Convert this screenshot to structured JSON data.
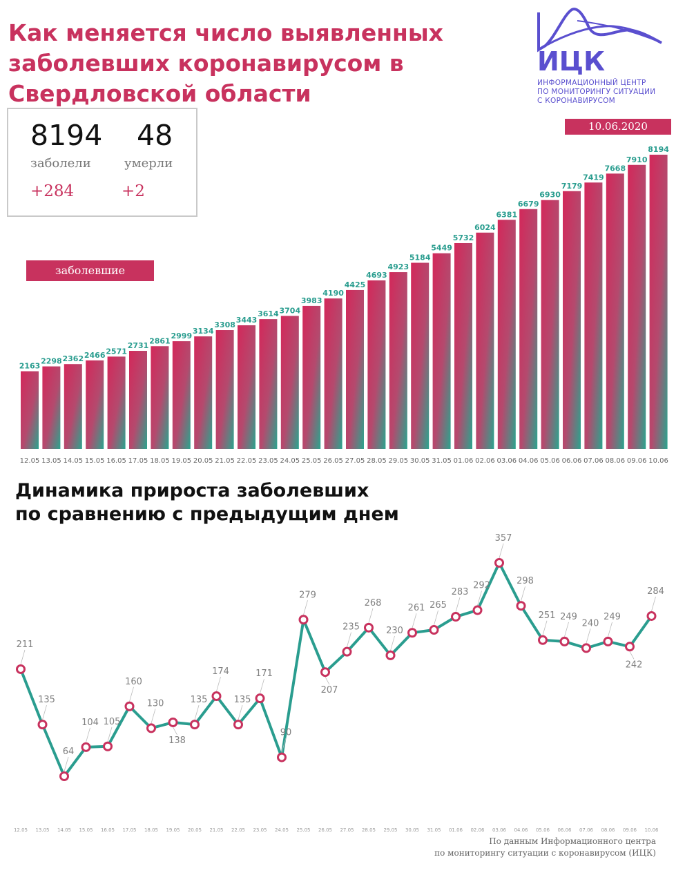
{
  "header": {
    "title_lines": [
      "Как меняется число выявленных",
      "заболевших коронавирусом в",
      "Свердловской области"
    ]
  },
  "stats": {
    "cases_total": "8194",
    "cases_label": "заболели",
    "cases_delta": "+284",
    "deaths_total": "48",
    "deaths_label": "умерли",
    "deaths_delta": "+2"
  },
  "logo": {
    "acronym": "ИЦК",
    "subtitle_lines": [
      "ИНФОРМАЦИОННЫЙ ЦЕНТР",
      "ПО МОНИТОРИНГУ СИТУАЦИИ",
      "С КОРОНАВИРУСОМ"
    ],
    "color": "#5a4fcf"
  },
  "date": "10.06.2020",
  "colors": {
    "accent": "#c8325e",
    "teal": "#2a9d8f",
    "grey": "#808080"
  },
  "chart_data": [
    {
      "type": "bar",
      "series_label": "заболевшие",
      "categories": [
        "12.05",
        "13.05",
        "14.05",
        "15.05",
        "16.05",
        "17.05",
        "18.05",
        "19.05",
        "20.05",
        "21.05",
        "22.05",
        "23.05",
        "24.05",
        "25.05",
        "26.05",
        "27.05",
        "28.05",
        "29.05",
        "30.05",
        "31.05",
        "01.06",
        "02.06",
        "03.06",
        "04.06",
        "05.06",
        "06.06",
        "07.06",
        "08.06",
        "09.06",
        "10.06"
      ],
      "values": [
        2163,
        2298,
        2362,
        2466,
        2571,
        2731,
        2861,
        2999,
        3134,
        3308,
        3443,
        3614,
        3704,
        3983,
        4190,
        4425,
        4693,
        4923,
        5184,
        5449,
        5732,
        6024,
        6381,
        6679,
        6930,
        7179,
        7419,
        7668,
        7910,
        8194
      ],
      "ylim": [
        0,
        8194
      ]
    },
    {
      "type": "line",
      "title_lines": [
        "Динамика прироста заболевших",
        "по сравнению с предыдущим днем"
      ],
      "categories": [
        "12.05",
        "13.05",
        "14.05",
        "15.05",
        "16.05",
        "17.05",
        "18.05",
        "19.05",
        "20.05",
        "21.05",
        "22.05",
        "23.05",
        "24.05",
        "25.05",
        "26.05",
        "27.05",
        "28.05",
        "29.05",
        "30.05",
        "31.05",
        "01.06",
        "02.06",
        "03.06",
        "04.06",
        "05.06",
        "06.06",
        "07.06",
        "08.06",
        "09.06",
        "10.06"
      ],
      "values": [
        211,
        135,
        64,
        104,
        105,
        160,
        130,
        138,
        135,
        174,
        135,
        171,
        90,
        279,
        207,
        235,
        268,
        230,
        261,
        265,
        283,
        292,
        357,
        298,
        251,
        249,
        240,
        249,
        242,
        284
      ],
      "label_position": [
        "above",
        "above",
        "above",
        "above",
        "above",
        "above",
        "above",
        "below",
        "above",
        "above",
        "above",
        "above",
        "above",
        "above",
        "below",
        "above",
        "above",
        "above",
        "above",
        "above",
        "above",
        "above",
        "above",
        "above",
        "above",
        "above",
        "above",
        "above",
        "below",
        "above"
      ]
    }
  ],
  "footer": {
    "source_lines": [
      "По данным Информационного центра",
      "по мониторингу ситуации с коронавирусом (ИЦК)"
    ]
  }
}
